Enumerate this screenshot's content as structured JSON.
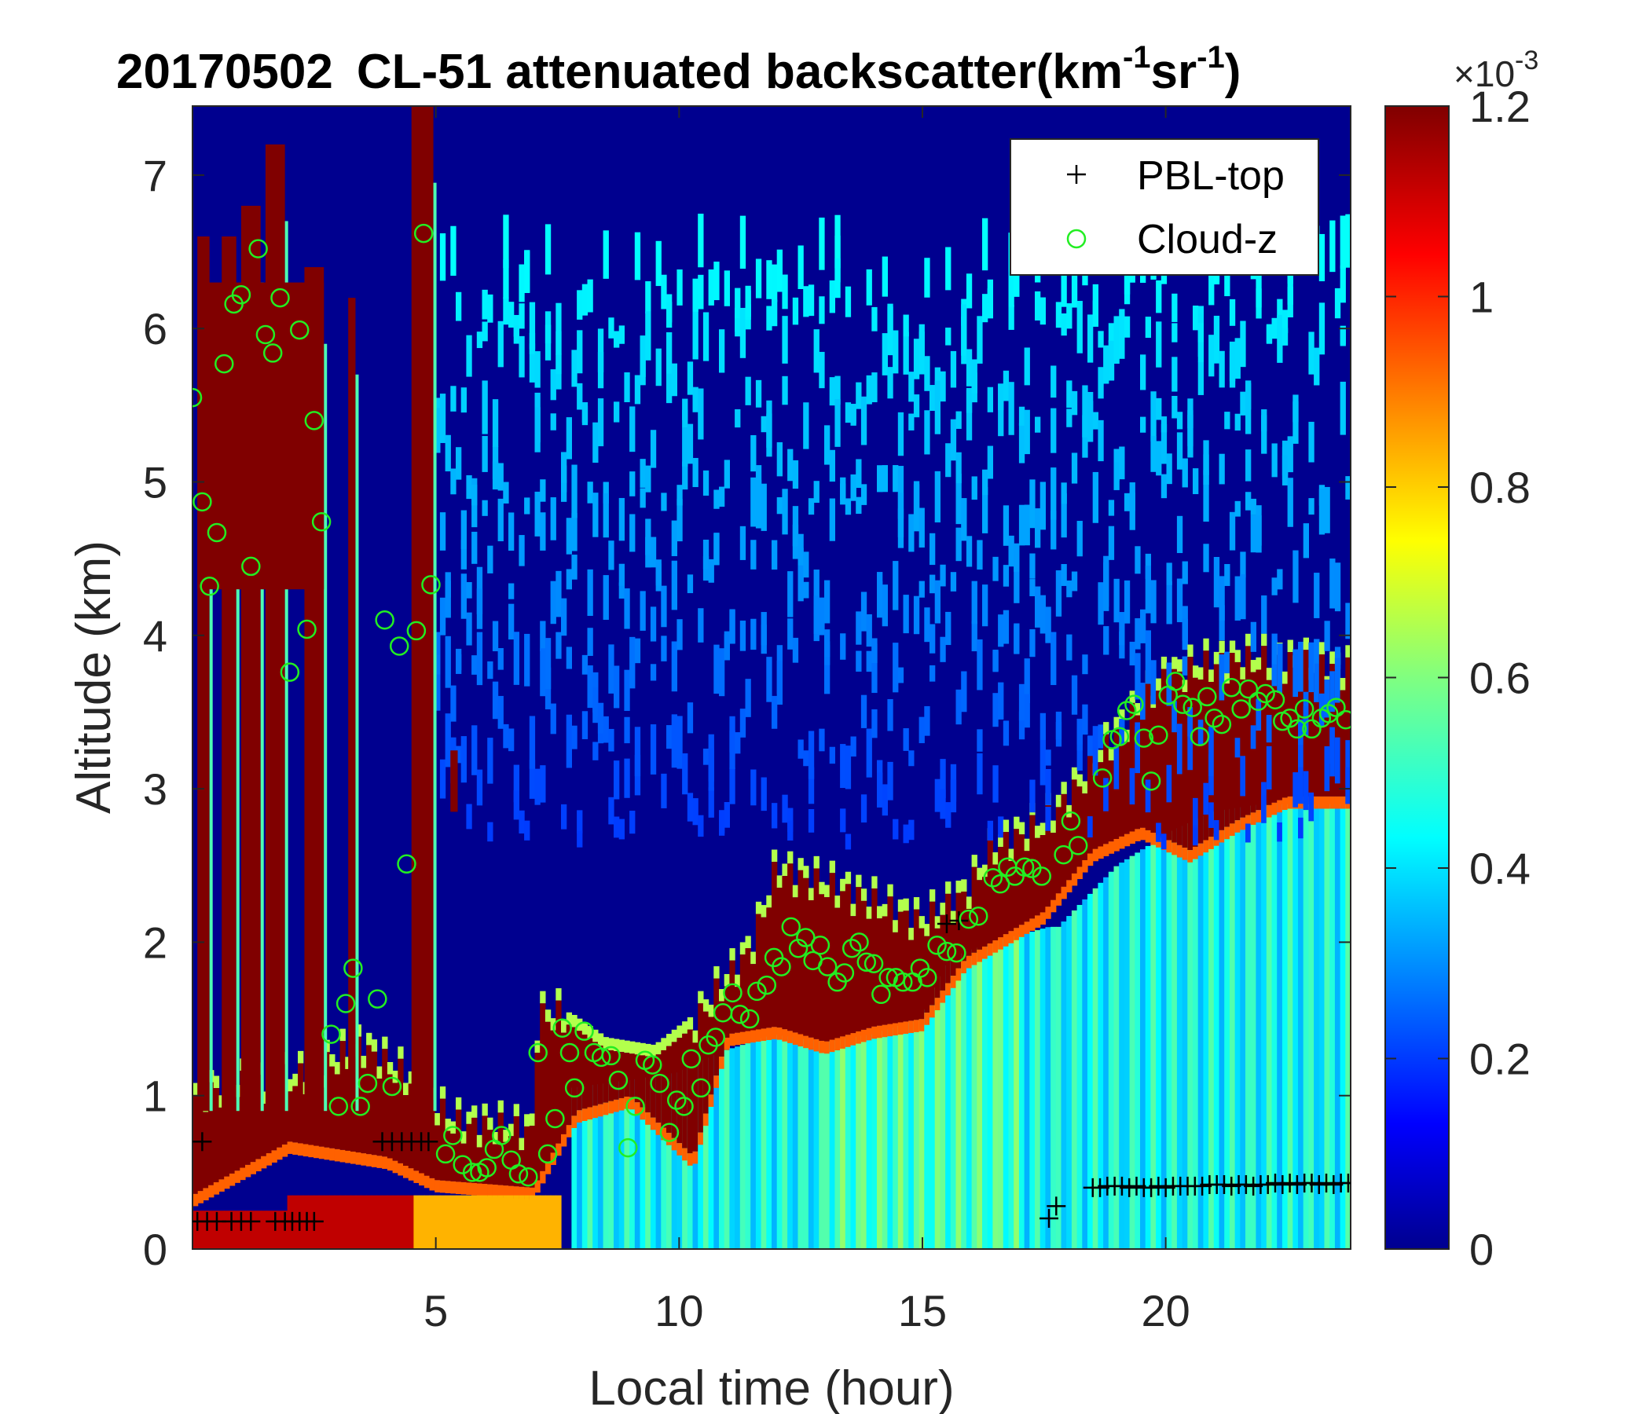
{
  "chart_data": {
    "type": "heatmap",
    "title": {
      "date": "20170502",
      "main": "CL-51 attenuated backscatter(km",
      "sup1": "-1",
      "mid": "sr",
      "sup2": "-1",
      "end": ")"
    },
    "xlabel": "Local time (hour)",
    "ylabel": "Altitude (km)",
    "xlim": [
      0,
      23.8
    ],
    "ylim": [
      0,
      7.45
    ],
    "xticks": [
      5,
      10,
      15,
      20
    ],
    "xtick_labels": [
      "5",
      "10",
      "15",
      "20"
    ],
    "yticks": [
      0,
      1,
      2,
      3,
      4,
      5,
      6,
      7
    ],
    "ytick_labels": [
      "0",
      "1",
      "2",
      "3",
      "4",
      "5",
      "6",
      "7"
    ],
    "colormap": "jet",
    "colorbar": {
      "range": [
        0,
        1.2
      ],
      "ticks": [
        0,
        0.2,
        0.4,
        0.6,
        0.8,
        1,
        1.2
      ],
      "tick_labels": [
        "0",
        "0.2",
        "0.4",
        "0.6",
        "0.8",
        "1",
        "1.2"
      ],
      "multiplier_base": "×10",
      "multiplier_exp": "-3"
    },
    "legend": {
      "position": "top-right",
      "entries": [
        {
          "label": "PBL-top",
          "marker": "+",
          "color": "#000000"
        },
        {
          "label": "Cloud-z",
          "marker": "o",
          "color": "#22ee22"
        }
      ]
    },
    "series": [
      {
        "name": "PBL-top",
        "marker": "+",
        "color": "#000000",
        "points": [
          [
            0.1,
            0.18
          ],
          [
            0.2,
            0.7
          ],
          [
            0.3,
            0.18
          ],
          [
            0.5,
            0.18
          ],
          [
            0.8,
            0.18
          ],
          [
            1.0,
            0.18
          ],
          [
            1.2,
            0.18
          ],
          [
            1.7,
            0.18
          ],
          [
            1.9,
            0.18
          ],
          [
            2.05,
            0.18
          ],
          [
            2.2,
            0.18
          ],
          [
            2.35,
            0.18
          ],
          [
            2.5,
            0.18
          ],
          [
            3.9,
            0.7
          ],
          [
            4.1,
            0.7
          ],
          [
            4.3,
            0.7
          ],
          [
            4.5,
            0.7
          ],
          [
            4.7,
            0.7
          ],
          [
            4.85,
            0.7
          ],
          [
            15.5,
            2.12
          ],
          [
            15.75,
            2.14
          ],
          [
            17.6,
            0.2
          ],
          [
            17.75,
            0.28
          ],
          [
            18.5,
            0.4
          ],
          [
            18.65,
            0.4
          ],
          [
            18.8,
            0.41
          ],
          [
            18.95,
            0.41
          ],
          [
            19.1,
            0.41
          ],
          [
            19.25,
            0.4
          ],
          [
            19.4,
            0.41
          ],
          [
            19.55,
            0.4
          ],
          [
            19.7,
            0.4
          ],
          [
            19.85,
            0.41
          ],
          [
            20.0,
            0.4
          ],
          [
            20.15,
            0.41
          ],
          [
            20.3,
            0.41
          ],
          [
            20.45,
            0.41
          ],
          [
            20.6,
            0.41
          ],
          [
            20.75,
            0.41
          ],
          [
            20.9,
            0.42
          ],
          [
            21.05,
            0.42
          ],
          [
            21.2,
            0.42
          ],
          [
            21.35,
            0.41
          ],
          [
            21.5,
            0.42
          ],
          [
            21.65,
            0.42
          ],
          [
            21.8,
            0.41
          ],
          [
            21.95,
            0.42
          ],
          [
            22.1,
            0.42
          ],
          [
            22.25,
            0.43
          ],
          [
            22.4,
            0.42
          ],
          [
            22.55,
            0.43
          ],
          [
            22.7,
            0.42
          ],
          [
            22.85,
            0.43
          ],
          [
            23.0,
            0.43
          ],
          [
            23.15,
            0.42
          ],
          [
            23.3,
            0.43
          ],
          [
            23.45,
            0.42
          ],
          [
            23.6,
            0.43
          ],
          [
            23.75,
            0.43
          ]
        ]
      },
      {
        "name": "Cloud-z",
        "marker": "o",
        "color": "#22ee22",
        "points": [
          [
            0.0,
            5.55
          ],
          [
            0.2,
            4.87
          ],
          [
            0.35,
            4.32
          ],
          [
            0.5,
            4.67
          ],
          [
            0.65,
            5.77
          ],
          [
            0.85,
            6.16
          ],
          [
            1.0,
            6.22
          ],
          [
            1.2,
            4.45
          ],
          [
            1.35,
            6.52
          ],
          [
            1.5,
            5.96
          ],
          [
            1.65,
            5.84
          ],
          [
            1.8,
            6.2
          ],
          [
            2.0,
            3.76
          ],
          [
            2.2,
            5.99
          ],
          [
            2.35,
            4.04
          ],
          [
            2.5,
            5.4
          ],
          [
            2.65,
            4.74
          ],
          [
            2.85,
            1.4
          ],
          [
            3.0,
            0.93
          ],
          [
            3.15,
            1.6
          ],
          [
            3.3,
            1.83
          ],
          [
            3.45,
            0.93
          ],
          [
            3.6,
            1.08
          ],
          [
            3.8,
            1.63
          ],
          [
            3.95,
            4.1
          ],
          [
            4.1,
            1.06
          ],
          [
            4.25,
            3.93
          ],
          [
            4.4,
            2.51
          ],
          [
            4.6,
            4.03
          ],
          [
            4.75,
            6.62
          ],
          [
            4.9,
            4.33
          ],
          [
            5.2,
            0.62
          ],
          [
            5.35,
            0.74
          ],
          [
            5.55,
            0.55
          ],
          [
            5.75,
            0.5
          ],
          [
            5.9,
            0.5
          ],
          [
            6.05,
            0.53
          ],
          [
            6.2,
            0.65
          ],
          [
            6.35,
            0.74
          ],
          [
            6.55,
            0.58
          ],
          [
            6.7,
            0.49
          ],
          [
            6.9,
            0.47
          ],
          [
            7.1,
            1.28
          ],
          [
            7.3,
            0.62
          ],
          [
            7.45,
            0.85
          ],
          [
            7.6,
            1.44
          ],
          [
            7.75,
            1.28
          ],
          [
            7.85,
            1.05
          ],
          [
            8.05,
            1.42
          ],
          [
            8.25,
            1.28
          ],
          [
            8.4,
            1.25
          ],
          [
            8.6,
            1.26
          ],
          [
            8.75,
            1.1
          ],
          [
            8.95,
            0.66
          ],
          [
            9.1,
            0.93
          ],
          [
            9.3,
            1.23
          ],
          [
            9.45,
            1.2
          ],
          [
            9.6,
            1.08
          ],
          [
            9.8,
            0.76
          ],
          [
            9.95,
            0.97
          ],
          [
            10.1,
            0.93
          ],
          [
            10.25,
            1.24
          ],
          [
            10.45,
            1.05
          ],
          [
            10.6,
            1.33
          ],
          [
            10.75,
            1.38
          ],
          [
            10.9,
            1.54
          ],
          [
            11.1,
            1.67
          ],
          [
            11.25,
            1.53
          ],
          [
            11.45,
            1.5
          ],
          [
            11.6,
            1.68
          ],
          [
            11.8,
            1.72
          ],
          [
            11.95,
            1.9
          ],
          [
            12.1,
            1.84
          ],
          [
            12.3,
            2.1
          ],
          [
            12.45,
            1.96
          ],
          [
            12.6,
            2.03
          ],
          [
            12.75,
            1.88
          ],
          [
            12.9,
            1.98
          ],
          [
            13.05,
            1.84
          ],
          [
            13.25,
            1.74
          ],
          [
            13.4,
            1.8
          ],
          [
            13.55,
            1.96
          ],
          [
            13.7,
            2.0
          ],
          [
            13.85,
            1.87
          ],
          [
            14.0,
            1.86
          ],
          [
            14.15,
            1.66
          ],
          [
            14.3,
            1.77
          ],
          [
            14.45,
            1.77
          ],
          [
            14.6,
            1.74
          ],
          [
            14.8,
            1.74
          ],
          [
            14.95,
            1.83
          ],
          [
            15.1,
            1.77
          ],
          [
            15.3,
            1.98
          ],
          [
            15.5,
            1.94
          ],
          [
            15.7,
            1.93
          ],
          [
            15.95,
            2.15
          ],
          [
            16.15,
            2.17
          ],
          [
            16.45,
            2.42
          ],
          [
            16.6,
            2.38
          ],
          [
            16.75,
            2.49
          ],
          [
            16.9,
            2.43
          ],
          [
            17.1,
            2.49
          ],
          [
            17.25,
            2.48
          ],
          [
            17.45,
            2.43
          ],
          [
            17.9,
            2.57
          ],
          [
            18.05,
            2.79
          ],
          [
            18.2,
            2.63
          ],
          [
            18.7,
            3.07
          ],
          [
            18.9,
            3.32
          ],
          [
            19.05,
            3.34
          ],
          [
            19.2,
            3.51
          ],
          [
            19.35,
            3.55
          ],
          [
            19.55,
            3.33
          ],
          [
            19.7,
            3.05
          ],
          [
            19.85,
            3.35
          ],
          [
            20.05,
            3.61
          ],
          [
            20.2,
            3.7
          ],
          [
            20.35,
            3.55
          ],
          [
            20.55,
            3.53
          ],
          [
            20.7,
            3.34
          ],
          [
            20.85,
            3.6
          ],
          [
            21.0,
            3.46
          ],
          [
            21.15,
            3.42
          ],
          [
            21.35,
            3.66
          ],
          [
            21.55,
            3.52
          ],
          [
            21.7,
            3.65
          ],
          [
            21.9,
            3.57
          ],
          [
            22.05,
            3.62
          ],
          [
            22.25,
            3.58
          ],
          [
            22.4,
            3.44
          ],
          [
            22.55,
            3.46
          ],
          [
            22.7,
            3.39
          ],
          [
            22.85,
            3.52
          ],
          [
            23.0,
            3.39
          ],
          [
            23.2,
            3.46
          ],
          [
            23.35,
            3.49
          ],
          [
            23.5,
            3.53
          ],
          [
            23.7,
            3.45
          ]
        ]
      }
    ]
  }
}
